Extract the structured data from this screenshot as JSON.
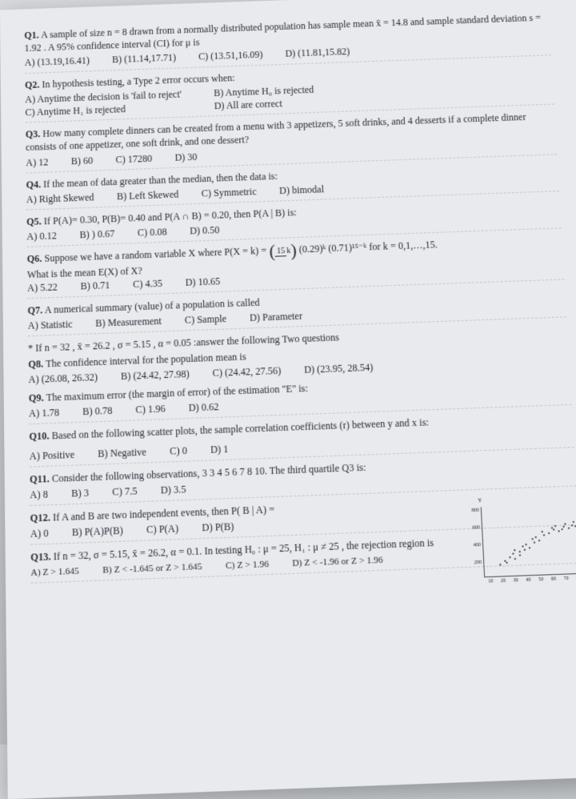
{
  "q1": {
    "label": "Q1.",
    "stem": "A sample of size n = 8 drawn from a normally distributed population has sample mean x̄ = 14.8 and sample standard deviation s = 1.92 . A 95% confidence interval (CI) for μ is",
    "a": "A) (13.19,16.41)",
    "b": "B) (11.14,17.71)",
    "c": "C) (13.51,16.09)",
    "d": "D) (11.81,15.82)"
  },
  "q2": {
    "label": "Q2.",
    "stem": "In hypothesis testing, a Type 2 error occurs when:",
    "a": "A) Anytime the decision is 'fail to reject'",
    "b": "B) Anytime H₀ is rejected",
    "c": "C) Anytime H₁ is rejected",
    "d": "D) All are correct"
  },
  "q3": {
    "label": "Q3.",
    "stem": "How many complete dinners can be created from a menu with 3 appetizers, 5 soft drinks, and 4 desserts if a complete dinner consists of one appetizer, one soft drink, and one dessert?",
    "a": "A) 12",
    "b": "B) 60",
    "c": "C) 17280",
    "d": "D) 30"
  },
  "q4": {
    "label": "Q4.",
    "stem": "If the mean of data greater than the median, then the data is:",
    "a": "A) Right Skewed",
    "b": "B) Left Skewed",
    "c": "C) Symmetric",
    "d": "D) bimodal"
  },
  "q5": {
    "label": "Q5.",
    "stem": "If P(A)= 0.30, P(B)= 0.40 and P(A ∩ B) = 0.20, then P(A | B) is:",
    "a": "A) 0.12",
    "b": "B) ) 0.67",
    "c": "C) 0.08",
    "d": "D) 0.50"
  },
  "q6": {
    "label": "Q6.",
    "stem_pre": "Suppose we have a random variable X where P(X = k) = ",
    "binom_top": "15",
    "binom_bot": "k",
    "stem_post": "(0.29)ᵏ (0.71)¹⁵⁻ᵏ for k = 0,1,…,15.",
    "sub": "What is the mean E(X) of X?",
    "a": "A) 5.22",
    "b": "B) 0.71",
    "c": "C) 4.35",
    "d": "D) 10.65"
  },
  "q7": {
    "label": "Q7.",
    "stem": "A numerical summary (value) of a population is called",
    "a": "A) Statistic",
    "b": "B) Measurement",
    "c": "C) Sample",
    "d": "D) Parameter"
  },
  "note78": "* If n = 32 , x̄ = 26.2 , σ = 5.15 , α = 0.05 :answer the following Two questions",
  "q8": {
    "label": "Q8.",
    "stem": "The confidence interval for the population mean is",
    "a": "A) (26.08, 26.32)",
    "b": "B) (24.42, 27.98)",
    "c": "C) (24.42, 27.56)",
    "d": "D) (23.95, 28.54)"
  },
  "q9": {
    "label": "Q9.",
    "stem": "The maximum error (the margin of error) of the estimation \"E\" is:",
    "a": "A) 1.78",
    "b": "B) 0.78",
    "c": "C) 1.96",
    "d": "D) 0.62"
  },
  "q10": {
    "label": "Q10.",
    "stem": "Based on the following scatter plots, the sample correlation coefficients (r) between y and x is:",
    "a": "A) Positive",
    "b": "B) Negative",
    "c": "C) 0",
    "d": "D) 1"
  },
  "q11": {
    "label": "Q11.",
    "stem": "Consider the following observations, 3  3  4  5  6  7  8  10. The third quartile Q3 is:",
    "a": "A) 8",
    "b": "B) 3",
    "c": "C) 7.5",
    "d": "D) 3.5"
  },
  "q12": {
    "label": "Q12.",
    "stem": "If A and B are two independent events, then P( B | A) =",
    "a": "A) 0",
    "b": "B) P(A)P(B)",
    "c": "C) P(A)",
    "d": "D) P(B)"
  },
  "q13": {
    "label": "Q13.",
    "stem": "If n = 32, σ = 5.15, x̄ = 26.2, α = 0.1. In testing H₀ : μ = 25, H₁ : μ ≠ 25 , the rejection region is",
    "a": "A) Z > 1.645",
    "b": "B) Z < -1.645  or Z > 1.645",
    "c": "C) Z > 1.96",
    "d": "D) Z < -1.96 or Z > 1.96"
  },
  "scatter": {
    "ylabels": [
      "800",
      "600",
      "400",
      "200"
    ],
    "xlabels": [
      "10",
      "20",
      "30",
      "40",
      "50",
      "60",
      "70",
      "80"
    ],
    "ylabel_axis": "Y",
    "xlabel_axis": "X",
    "points": [
      [
        15,
        15
      ],
      [
        20,
        20
      ],
      [
        22,
        18
      ],
      [
        25,
        25
      ],
      [
        30,
        22
      ],
      [
        28,
        30
      ],
      [
        35,
        28
      ],
      [
        40,
        35
      ],
      [
        38,
        40
      ],
      [
        45,
        38
      ],
      [
        50,
        45
      ],
      [
        48,
        50
      ],
      [
        55,
        48
      ],
      [
        60,
        55
      ],
      [
        58,
        60
      ],
      [
        65,
        58
      ],
      [
        70,
        62
      ],
      [
        68,
        65
      ],
      [
        75,
        60
      ],
      [
        72,
        68
      ],
      [
        78,
        63
      ],
      [
        80,
        66
      ],
      [
        82,
        70
      ],
      [
        85,
        64
      ],
      [
        88,
        68
      ],
      [
        90,
        72
      ],
      [
        92,
        66
      ],
      [
        95,
        70
      ],
      [
        30,
        35
      ],
      [
        35,
        32
      ],
      [
        42,
        42
      ],
      [
        52,
        52
      ]
    ]
  }
}
